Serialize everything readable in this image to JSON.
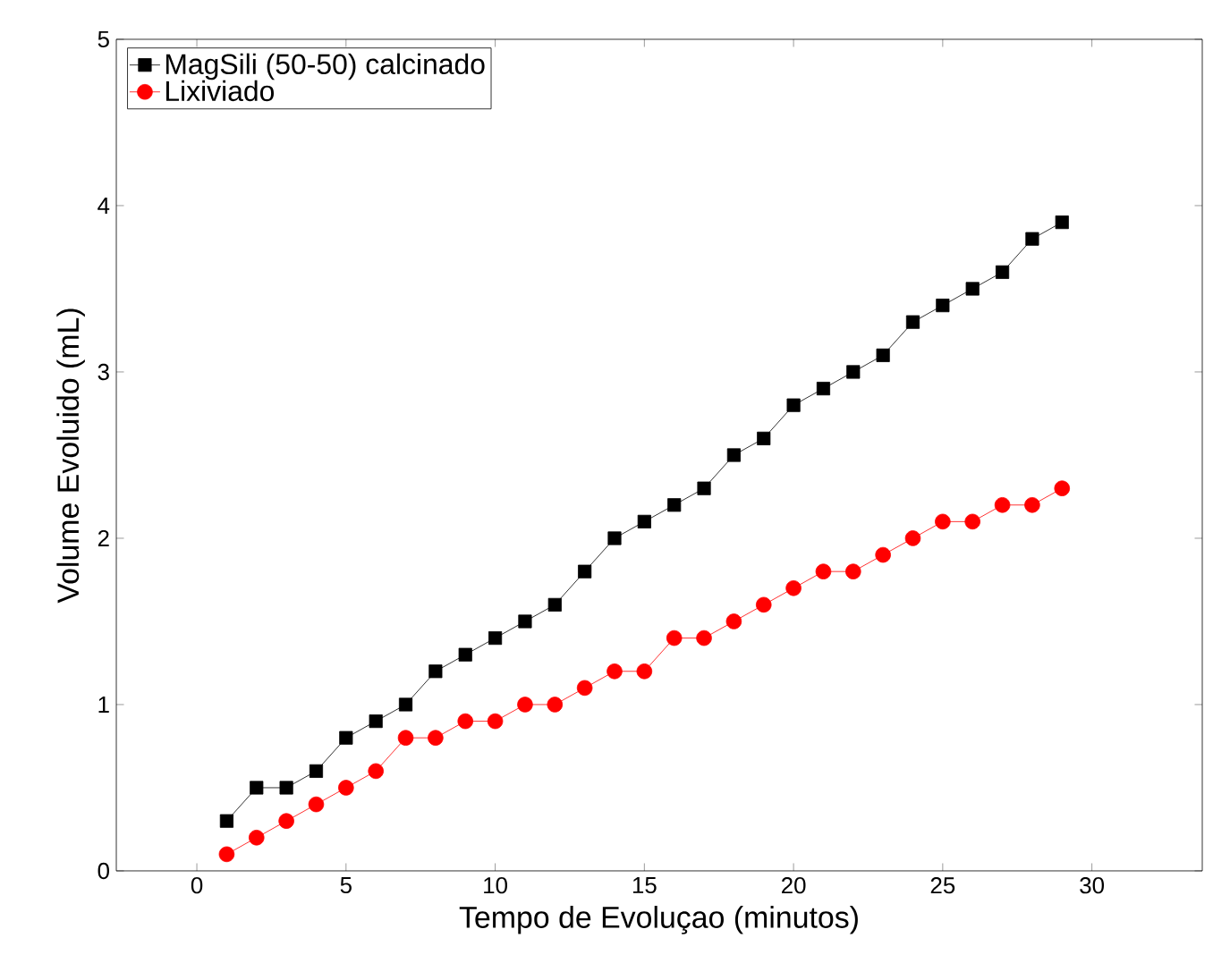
{
  "chart_data": {
    "type": "line",
    "xlabel": "Tempo de Evoluçao (minutos)",
    "ylabel": "Volume Evoluido (mL)",
    "x": [
      1,
      2,
      3,
      4,
      5,
      6,
      7,
      8,
      9,
      10,
      11,
      12,
      13,
      14,
      15,
      16,
      17,
      18,
      19,
      20,
      21,
      22,
      23,
      24,
      25,
      26,
      27,
      28,
      29
    ],
    "series": [
      {
        "name": "MagSili (50-50) calcinado",
        "color": "#000000",
        "marker": "square",
        "values": [
          0.3,
          0.5,
          0.5,
          0.6,
          0.8,
          0.9,
          1.0,
          1.2,
          1.3,
          1.4,
          1.5,
          1.6,
          1.8,
          2.0,
          2.1,
          2.2,
          2.3,
          2.5,
          2.6,
          2.8,
          2.9,
          3.0,
          3.1,
          3.3,
          3.4,
          3.5,
          3.6,
          3.8,
          3.9
        ]
      },
      {
        "name": "Lixiviado",
        "color": "#ff0000",
        "marker": "circle",
        "values": [
          0.1,
          0.2,
          0.3,
          0.4,
          0.5,
          0.6,
          0.8,
          0.8,
          0.9,
          0.9,
          1.0,
          1.0,
          1.1,
          1.2,
          1.2,
          1.4,
          1.4,
          1.5,
          1.6,
          1.7,
          1.8,
          1.8,
          1.9,
          2.0,
          2.1,
          2.1,
          2.2,
          2.2,
          2.3
        ]
      }
    ],
    "xlim": [
      -2.7,
      33.7
    ],
    "xticks": [
      0,
      5,
      10,
      15,
      20,
      25,
      30
    ],
    "ylim": [
      0,
      5
    ],
    "yticks": [
      0,
      1,
      2,
      3,
      4,
      5
    ],
    "grid": false,
    "legend": "top left",
    "line_style": "solid"
  }
}
